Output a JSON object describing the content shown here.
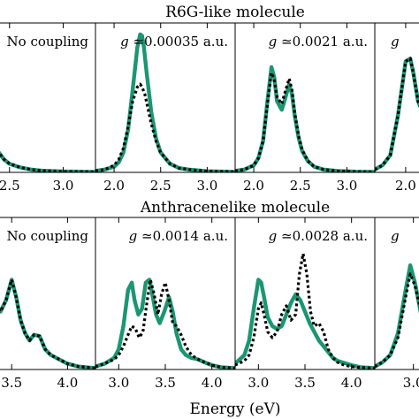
{
  "figure": {
    "xlabel": "Energy (eV)"
  },
  "chart_data": [
    {
      "type": "line",
      "row_title": "R6G-like molecule",
      "panel_title": "No coupling",
      "xlim": [
        2.0,
        3.3
      ],
      "ylim": [
        0,
        1.05
      ],
      "xticks": [
        "2.5",
        "3.0"
      ],
      "xtick_values": [
        2.5,
        3.0
      ],
      "series": [
        {
          "style": "solid",
          "color": "#1a9672",
          "x": [
            2.0,
            2.05,
            2.08,
            2.12,
            2.15,
            2.17,
            2.18,
            2.2,
            2.22,
            2.25,
            2.3,
            2.35,
            2.4,
            2.45,
            2.5,
            2.6,
            2.7,
            2.8,
            3.0,
            3.3
          ],
          "y": [
            0.22,
            0.45,
            0.7,
            0.93,
            0.99,
            0.97,
            0.9,
            0.76,
            0.62,
            0.46,
            0.3,
            0.2,
            0.14,
            0.09,
            0.06,
            0.035,
            0.02,
            0.012,
            0.006,
            0.003
          ]
        },
        {
          "style": "dotted",
          "color": "#000000",
          "x": [
            2.0,
            2.05,
            2.08,
            2.12,
            2.15,
            2.17,
            2.18,
            2.2,
            2.22,
            2.25,
            2.3,
            2.35,
            2.4,
            2.45,
            2.5,
            2.6,
            2.7,
            2.8,
            3.0,
            3.3
          ],
          "y": [
            0.22,
            0.45,
            0.7,
            0.93,
            0.99,
            0.97,
            0.9,
            0.76,
            0.62,
            0.46,
            0.3,
            0.2,
            0.14,
            0.09,
            0.06,
            0.035,
            0.02,
            0.012,
            0.006,
            0.003
          ]
        }
      ]
    },
    {
      "type": "line",
      "row_title": "",
      "panel_title": "g ≃0.00035 a.u.",
      "xlim": [
        1.8,
        3.3
      ],
      "ylim": [
        0,
        1.05
      ],
      "xticks": [
        "2.0",
        "2.5",
        "3.0"
      ],
      "xtick_values": [
        2.0,
        2.5,
        3.0
      ],
      "series": [
        {
          "style": "solid",
          "color": "#1a9672",
          "x": [
            1.8,
            1.9,
            2.0,
            2.05,
            2.1,
            2.15,
            2.2,
            2.25,
            2.28,
            2.3,
            2.32,
            2.35,
            2.4,
            2.45,
            2.5,
            2.6,
            2.7,
            2.8,
            3.0,
            3.3
          ],
          "y": [
            0.01,
            0.02,
            0.04,
            0.07,
            0.14,
            0.3,
            0.58,
            0.88,
            0.97,
            0.96,
            0.88,
            0.7,
            0.42,
            0.24,
            0.14,
            0.06,
            0.03,
            0.02,
            0.008,
            0.004
          ]
        },
        {
          "style": "dotted",
          "color": "#000000",
          "x": [
            1.8,
            1.9,
            2.0,
            2.05,
            2.1,
            2.15,
            2.2,
            2.25,
            2.28,
            2.3,
            2.33,
            2.36,
            2.4,
            2.45,
            2.5,
            2.6,
            2.7,
            2.8,
            3.0,
            3.3
          ],
          "y": [
            0.01,
            0.02,
            0.05,
            0.09,
            0.17,
            0.32,
            0.5,
            0.6,
            0.62,
            0.6,
            0.55,
            0.46,
            0.34,
            0.22,
            0.14,
            0.06,
            0.03,
            0.02,
            0.008,
            0.004
          ]
        }
      ]
    },
    {
      "type": "line",
      "row_title": "",
      "panel_title": "g ≃0.0021 a.u.",
      "xlim": [
        1.8,
        3.3
      ],
      "ylim": [
        0,
        1.05
      ],
      "xticks": [
        "2.0",
        "2.5",
        "3.0"
      ],
      "xtick_values": [
        2.0,
        2.5,
        3.0
      ],
      "series": [
        {
          "style": "solid",
          "color": "#1a9672",
          "x": [
            1.8,
            1.9,
            2.0,
            2.05,
            2.1,
            2.15,
            2.19,
            2.22,
            2.25,
            2.3,
            2.33,
            2.38,
            2.41,
            2.44,
            2.48,
            2.52,
            2.58,
            2.65,
            2.75,
            2.9,
            3.1,
            3.3
          ],
          "y": [
            0.01,
            0.02,
            0.05,
            0.1,
            0.22,
            0.52,
            0.74,
            0.67,
            0.5,
            0.44,
            0.5,
            0.62,
            0.55,
            0.4,
            0.25,
            0.15,
            0.08,
            0.04,
            0.02,
            0.01,
            0.005,
            0.003
          ]
        },
        {
          "style": "dotted",
          "color": "#000000",
          "x": [
            1.8,
            1.9,
            2.0,
            2.05,
            2.1,
            2.15,
            2.19,
            2.22,
            2.25,
            2.3,
            2.33,
            2.38,
            2.41,
            2.44,
            2.48,
            2.52,
            2.58,
            2.65,
            2.75,
            2.9,
            3.1,
            3.3
          ],
          "y": [
            0.01,
            0.02,
            0.05,
            0.1,
            0.22,
            0.5,
            0.7,
            0.65,
            0.53,
            0.48,
            0.55,
            0.66,
            0.58,
            0.42,
            0.26,
            0.16,
            0.08,
            0.04,
            0.02,
            0.01,
            0.005,
            0.003
          ]
        }
      ]
    },
    {
      "type": "line",
      "row_title": "",
      "panel_title": "g",
      "xlim": [
        1.8,
        2.35
      ],
      "ylim": [
        0,
        1.05
      ],
      "xticks": [
        "2.0"
      ],
      "xtick_values": [
        2.0
      ],
      "series": [
        {
          "style": "solid",
          "color": "#1a9672",
          "x": [
            1.8,
            1.85,
            1.9,
            1.95,
            2.0,
            2.03,
            2.05,
            2.08,
            2.12,
            2.18,
            2.25,
            2.35
          ],
          "y": [
            0.02,
            0.05,
            0.12,
            0.4,
            0.78,
            0.8,
            0.7,
            0.5,
            0.4,
            0.36,
            0.34,
            0.32
          ]
        },
        {
          "style": "dotted",
          "color": "#000000",
          "x": [
            1.8,
            1.85,
            1.9,
            1.95,
            2.0,
            2.03,
            2.05,
            2.08,
            2.12,
            2.18,
            2.25,
            2.35
          ],
          "y": [
            0.02,
            0.05,
            0.12,
            0.4,
            0.78,
            0.8,
            0.7,
            0.5,
            0.4,
            0.36,
            0.34,
            0.32
          ]
        }
      ]
    },
    {
      "type": "line",
      "row_title": "Anthracenelike molecule",
      "panel_title": "No coupling",
      "xlim": [
        3.0,
        4.25
      ],
      "ylim": [
        0,
        1.05
      ],
      "xticks": [
        "3.5",
        "4.0"
      ],
      "xtick_values": [
        3.5,
        4.0
      ],
      "series": [
        {
          "style": "solid",
          "color": "#1a9672",
          "x": [
            3.0,
            3.05,
            3.1,
            3.13,
            3.16,
            3.2,
            3.24,
            3.28,
            3.32,
            3.36,
            3.4,
            3.45,
            3.5,
            3.54,
            3.58,
            3.62,
            3.66,
            3.7,
            3.75,
            3.8,
            3.85,
            3.9,
            3.95,
            4.0,
            4.1,
            4.25
          ],
          "y": [
            0.55,
            0.7,
            0.78,
            0.62,
            0.5,
            0.55,
            0.72,
            0.86,
            0.68,
            0.45,
            0.4,
            0.48,
            0.62,
            0.5,
            0.34,
            0.25,
            0.2,
            0.24,
            0.23,
            0.14,
            0.1,
            0.08,
            0.06,
            0.04,
            0.02,
            0.01
          ]
        },
        {
          "style": "dotted",
          "color": "#000000",
          "x": [
            3.0,
            3.05,
            3.1,
            3.13,
            3.16,
            3.2,
            3.24,
            3.28,
            3.32,
            3.36,
            3.4,
            3.45,
            3.5,
            3.54,
            3.58,
            3.62,
            3.66,
            3.7,
            3.75,
            3.8,
            3.85,
            3.9,
            3.95,
            4.0,
            4.1,
            4.25
          ],
          "y": [
            0.55,
            0.7,
            0.78,
            0.62,
            0.5,
            0.55,
            0.72,
            0.86,
            0.68,
            0.45,
            0.4,
            0.48,
            0.62,
            0.5,
            0.34,
            0.25,
            0.2,
            0.24,
            0.23,
            0.14,
            0.1,
            0.08,
            0.06,
            0.04,
            0.02,
            0.01
          ]
        }
      ]
    },
    {
      "type": "line",
      "row_title": "",
      "panel_title": "g ≃0.0014 a.u.",
      "xlim": [
        2.75,
        4.25
      ],
      "ylim": [
        0,
        1.05
      ],
      "xticks": [
        "3.0",
        "3.5",
        "4.0"
      ],
      "xtick_values": [
        3.0,
        3.5,
        4.0
      ],
      "series": [
        {
          "style": "solid",
          "color": "#1a9672",
          "x": [
            2.75,
            2.85,
            2.95,
            3.0,
            3.05,
            3.1,
            3.14,
            3.17,
            3.21,
            3.25,
            3.29,
            3.33,
            3.36,
            3.4,
            3.44,
            3.49,
            3.54,
            3.58,
            3.62,
            3.67,
            3.72,
            3.78,
            3.85,
            3.92,
            4.0,
            4.1,
            4.25
          ],
          "y": [
            0.02,
            0.04,
            0.08,
            0.14,
            0.3,
            0.55,
            0.6,
            0.48,
            0.38,
            0.42,
            0.6,
            0.62,
            0.52,
            0.38,
            0.32,
            0.4,
            0.5,
            0.4,
            0.25,
            0.14,
            0.1,
            0.08,
            0.07,
            0.05,
            0.03,
            0.015,
            0.01
          ]
        },
        {
          "style": "dotted",
          "color": "#000000",
          "x": [
            2.75,
            2.85,
            2.95,
            3.0,
            3.05,
            3.1,
            3.14,
            3.18,
            3.22,
            3.26,
            3.3,
            3.34,
            3.38,
            3.42,
            3.46,
            3.5,
            3.54,
            3.58,
            3.62,
            3.67,
            3.72,
            3.78,
            3.85,
            3.92,
            4.0,
            4.1,
            4.25
          ],
          "y": [
            0.02,
            0.04,
            0.07,
            0.1,
            0.16,
            0.24,
            0.3,
            0.28,
            0.22,
            0.26,
            0.45,
            0.62,
            0.52,
            0.38,
            0.52,
            0.6,
            0.48,
            0.32,
            0.3,
            0.24,
            0.16,
            0.1,
            0.07,
            0.05,
            0.03,
            0.015,
            0.01
          ]
        }
      ]
    },
    {
      "type": "line",
      "row_title": "",
      "panel_title": "g ≃0.0028 a.u.",
      "xlim": [
        2.75,
        4.25
      ],
      "ylim": [
        0,
        1.05
      ],
      "xticks": [
        "3.0",
        "3.5",
        "4.0"
      ],
      "xtick_values": [
        3.0,
        3.5,
        4.0
      ],
      "series": [
        {
          "style": "solid",
          "color": "#1a9672",
          "x": [
            2.75,
            2.85,
            2.9,
            2.95,
            3.0,
            3.03,
            3.06,
            3.1,
            3.15,
            3.2,
            3.25,
            3.3,
            3.35,
            3.4,
            3.45,
            3.5,
            3.55,
            3.6,
            3.65,
            3.7,
            3.75,
            3.8,
            3.85,
            3.9,
            4.0,
            4.1,
            4.25
          ],
          "y": [
            0.04,
            0.1,
            0.2,
            0.42,
            0.62,
            0.6,
            0.5,
            0.36,
            0.3,
            0.28,
            0.3,
            0.38,
            0.46,
            0.52,
            0.48,
            0.4,
            0.32,
            0.26,
            0.2,
            0.16,
            0.12,
            0.08,
            0.06,
            0.05,
            0.03,
            0.015,
            0.01
          ]
        },
        {
          "style": "dotted",
          "color": "#000000",
          "x": [
            2.75,
            2.85,
            2.9,
            2.95,
            3.0,
            3.03,
            3.06,
            3.1,
            3.15,
            3.2,
            3.25,
            3.3,
            3.35,
            3.4,
            3.44,
            3.48,
            3.52,
            3.56,
            3.6,
            3.65,
            3.7,
            3.75,
            3.8,
            3.85,
            3.92,
            4.05,
            4.25
          ],
          "y": [
            0.03,
            0.06,
            0.1,
            0.22,
            0.42,
            0.46,
            0.38,
            0.26,
            0.22,
            0.26,
            0.38,
            0.44,
            0.34,
            0.38,
            0.66,
            0.8,
            0.66,
            0.4,
            0.3,
            0.32,
            0.26,
            0.14,
            0.08,
            0.05,
            0.03,
            0.015,
            0.01
          ]
        }
      ]
    },
    {
      "type": "line",
      "row_title": "",
      "panel_title": "g",
      "xlim": [
        2.75,
        3.3
      ],
      "ylim": [
        0,
        1.05
      ],
      "xticks": [
        "3.0"
      ],
      "xtick_values": [
        3.0
      ],
      "series": [
        {
          "style": "solid",
          "color": "#1a9672",
          "x": [
            2.75,
            2.8,
            2.85,
            2.9,
            2.95,
            2.98,
            3.01,
            3.05,
            3.1,
            3.18,
            3.3
          ],
          "y": [
            0.02,
            0.05,
            0.1,
            0.25,
            0.55,
            0.72,
            0.6,
            0.38,
            0.24,
            0.2,
            0.18
          ]
        },
        {
          "style": "dotted",
          "color": "#000000",
          "x": [
            2.75,
            2.8,
            2.85,
            2.9,
            2.95,
            2.98,
            3.01,
            3.05,
            3.1,
            3.18,
            3.3
          ],
          "y": [
            0.02,
            0.05,
            0.1,
            0.22,
            0.5,
            0.66,
            0.58,
            0.4,
            0.28,
            0.22,
            0.2
          ]
        }
      ]
    }
  ]
}
